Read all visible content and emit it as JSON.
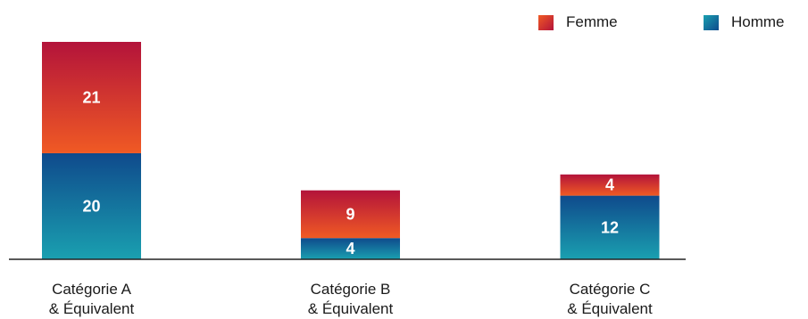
{
  "chart_data": {
    "type": "bar",
    "stacked": true,
    "categories": [
      [
        "Catégorie A",
        "& Équivalent"
      ],
      [
        "Catégorie B",
        "& Équivalent"
      ],
      [
        "Catégorie C",
        "& Équivalent"
      ]
    ],
    "series": [
      {
        "name": "Homme",
        "values": [
          20,
          4,
          12
        ],
        "colors": [
          "#0f4a8c",
          "#1aa0b0"
        ]
      },
      {
        "name": "Femme",
        "values": [
          21,
          9,
          4
        ],
        "colors": [
          "#b3133a",
          "#f05a24"
        ]
      }
    ],
    "legend_order": [
      "Femme",
      "Homme"
    ],
    "legend_position": "top-right",
    "ylim": [
      0,
      41
    ],
    "grid": false
  }
}
